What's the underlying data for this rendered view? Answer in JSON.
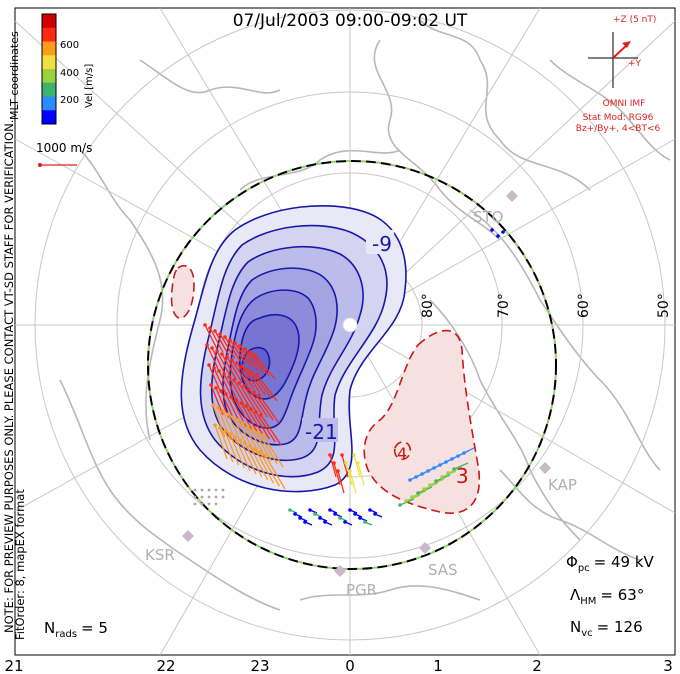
{
  "title": "07/Jul/2003 09:00-09:02 UT",
  "colorbar": {
    "label": "Vel [m/s]",
    "ticks": [
      "600",
      "400",
      "200"
    ],
    "colors": [
      "#0000ff",
      "#2a8cff",
      "#3cb46e",
      "#9ad23c",
      "#f0e040",
      "#ff9a20",
      "#ff2a10",
      "#d00000"
    ]
  },
  "coord_label": "MLT coordinates",
  "scale_vector": "1000 m/s",
  "imf": {
    "z_label": "+Z (5 nT)",
    "y_label": "+Y",
    "title": "OMNI IMF",
    "model": "Stat Mod: RG96",
    "condition": "Bz+/By+, 4<BT<6"
  },
  "note_line1": "NOTE: FOR PREVIEW PURPOSES ONLY. PLEASE CONTACT VT-SD STAFF FOR VERIFICATION.",
  "note_line2": "FitOrder: 8, mapEX format",
  "latitude_labels": [
    "80°",
    "70°",
    "60°",
    "50°"
  ],
  "contour_labels": [
    "-9",
    "-21",
    "3",
    "4"
  ],
  "stations": [
    "STO",
    "KAP",
    "SAS",
    "PGR",
    "KSR"
  ],
  "stats": {
    "phi_symbol": "Φ",
    "phi_sub": "pc",
    "phi_value": "= 49 kV",
    "lambda_symbol": "Λ",
    "lambda_sub": "HM",
    "lambda_value": "= 63°",
    "nvc_symbol": "N",
    "nvc_sub": "vc",
    "nvc_value": "= 126",
    "nrads_symbol": "N",
    "nrads_sub": "rads",
    "nrads_value": "= 5"
  },
  "mlt_axis": [
    "21",
    "22",
    "23",
    "0",
    "1",
    "2",
    "3"
  ]
}
